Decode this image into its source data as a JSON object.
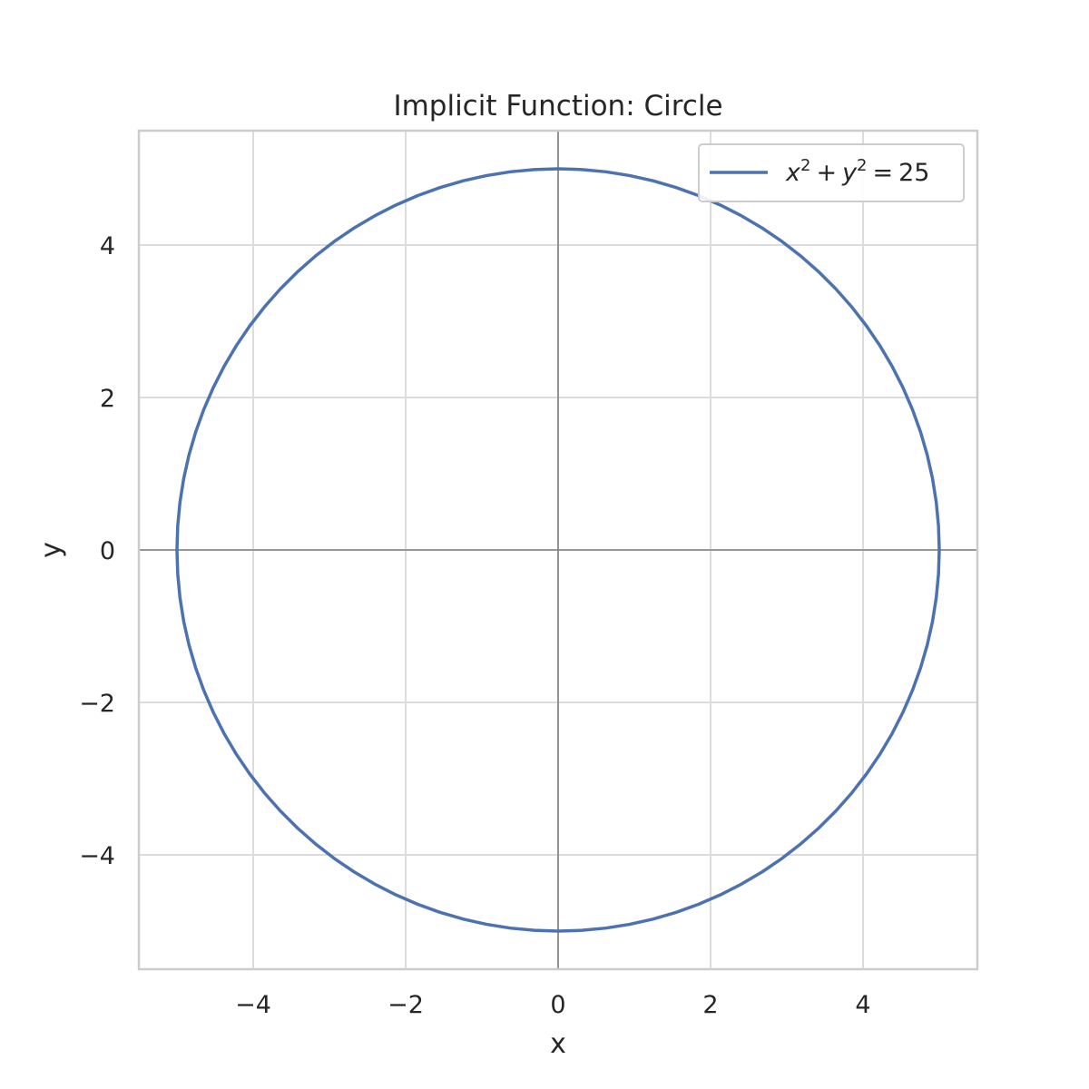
{
  "chart_data": {
    "type": "line",
    "title": "Implicit Function: Circle",
    "xlabel": "x",
    "ylabel": "y",
    "xlim": [
      -5.5,
      5.5
    ],
    "ylim": [
      -5.5,
      5.5
    ],
    "xticks": [
      -4,
      -2,
      0,
      2,
      4
    ],
    "yticks": [
      -4,
      -2,
      0,
      2,
      4
    ],
    "xtick_labels": [
      "−4",
      "−2",
      "0",
      "2",
      "4"
    ],
    "ytick_labels": [
      "−4",
      "−2",
      "0",
      "2",
      "4"
    ],
    "grid": true,
    "reference_lines": {
      "x": 0,
      "y": 0
    },
    "legend": {
      "placement": "top-right",
      "entries": [
        {
          "text": "x² + y² = 25",
          "var1": "x",
          "var2": "y",
          "exp": "2",
          "plus": "+",
          "equals": "=",
          "rhs": "25"
        }
      ]
    },
    "series": [
      {
        "label": "x² + y² = 25",
        "equation": {
          "center": [
            0,
            0
          ],
          "radius": 5
        },
        "color": "#4c72b0"
      }
    ]
  }
}
